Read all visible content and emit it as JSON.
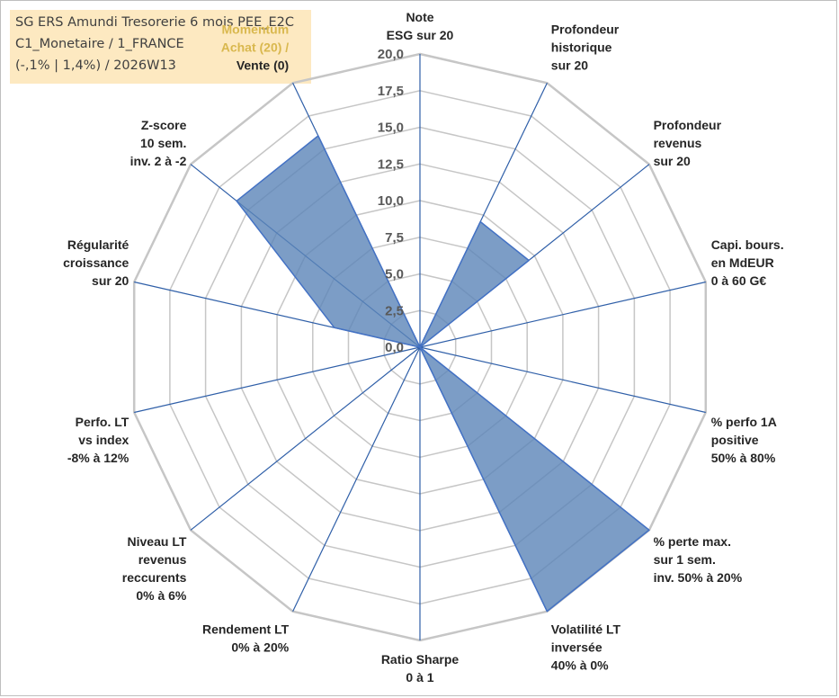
{
  "title": {
    "line1": "SG ERS Amundi Tresorerie 6 mois PEE_E2C",
    "line2": "C1_Monetaire / 1_FRANCE",
    "line3": "(-,1% | 1,4%) / 2026W13"
  },
  "colors": {
    "fill": "#5b85b8",
    "stroke": "#4472c4",
    "ring": "#c6c6c6",
    "spoke": "#2f5fa8",
    "highlight_label": "#d9b84e",
    "title_bg": "#fde9c1"
  },
  "chart_data": {
    "type": "radar",
    "r_min": 0,
    "r_max": 20,
    "tick_step": 2.5,
    "tick_labels": [
      "0,0",
      "2,5",
      "5,0",
      "7,5",
      "10,0",
      "12,5",
      "15,0",
      "17,5",
      "20,0"
    ],
    "axes": [
      {
        "lines": [
          "Note",
          "ESG sur 20"
        ],
        "value": 0
      },
      {
        "lines": [
          "Profondeur",
          "historique",
          "sur 20"
        ],
        "value": 9.5
      },
      {
        "lines": [
          "Profondeur",
          "revenus",
          "sur 20"
        ],
        "value": 9.5
      },
      {
        "lines": [
          "Capi. bours.",
          "en MdEUR",
          "0 à 60 G€"
        ],
        "value": 0
      },
      {
        "lines": [
          "% perfo 1A",
          "positive",
          "50% à 80%"
        ],
        "value": 0
      },
      {
        "lines": [
          "% perte max.",
          "sur 1 sem.",
          "inv. 50% à 20%"
        ],
        "value": 20
      },
      {
        "lines": [
          "Volatilité LT",
          "inversée",
          "40% à 0%"
        ],
        "value": 20
      },
      {
        "lines": [
          "Ratio Sharpe",
          "0 à 1"
        ],
        "value": 0
      },
      {
        "lines": [
          "Rendement LT",
          "0% à 20%"
        ],
        "value": 0
      },
      {
        "lines": [
          "Niveau LT",
          "revenus",
          "reccurents",
          "0% à 6%"
        ],
        "value": 0
      },
      {
        "lines": [
          "Perfo. LT",
          "vs index",
          "-8% à 12%"
        ],
        "value": 0
      },
      {
        "lines": [
          "Régularité",
          "croissance",
          "sur 20"
        ],
        "value": 6
      },
      {
        "lines": [
          "Z-score",
          "10 sem.",
          "inv. 2 à -2"
        ],
        "value": 16
      },
      {
        "lines": [
          "Momentum",
          "Achat (20) /",
          "Vente (0)"
        ],
        "value": 16,
        "highlight_lines": 2
      }
    ]
  }
}
